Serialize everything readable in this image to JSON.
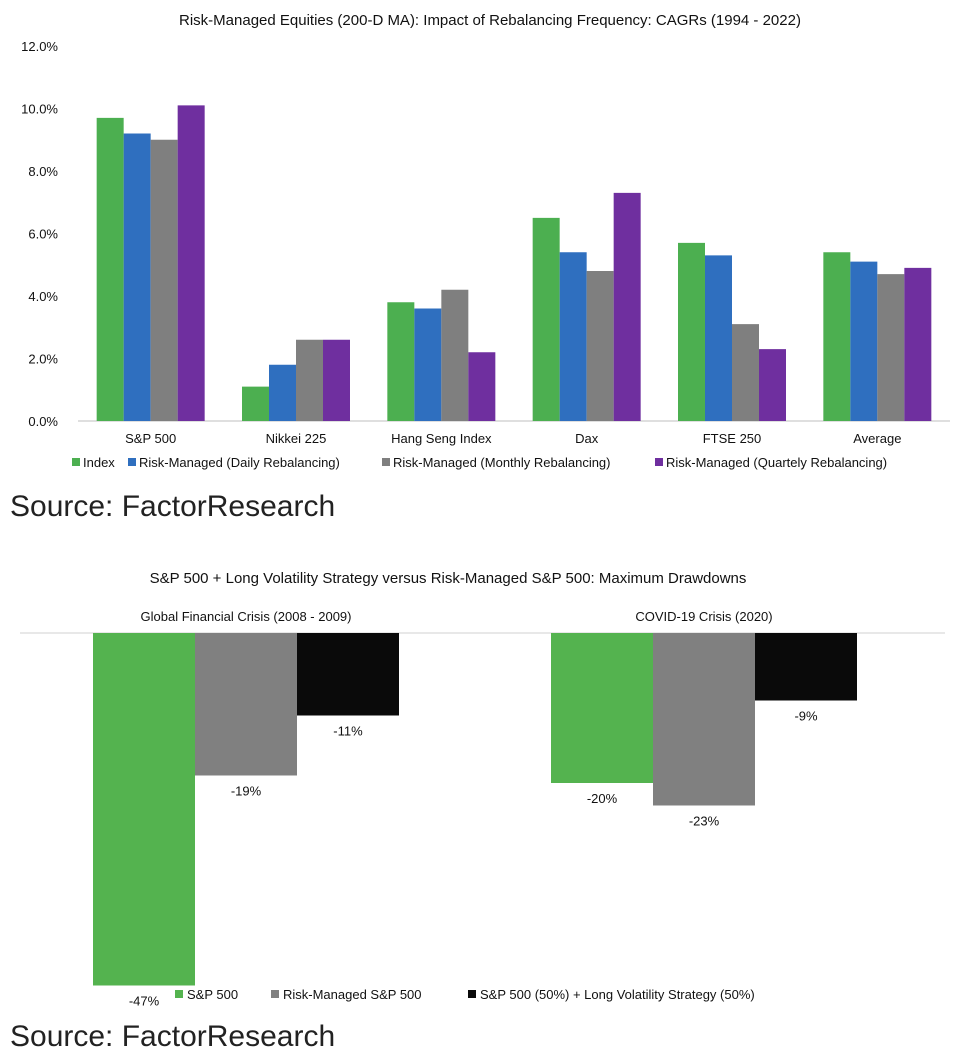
{
  "chart_data": [
    {
      "type": "bar",
      "title": "Risk-Managed Equities (200-D MA): Impact of Rebalancing Frequency: CAGRs (1994 - 2022)",
      "categories": [
        "S&P 500",
        "Nikkei 225",
        "Hang Seng Index",
        "Dax",
        "FTSE 250",
        "Average"
      ],
      "ylim": [
        0,
        12
      ],
      "ytick_labels": [
        "0.0%",
        "2.0%",
        "4.0%",
        "6.0%",
        "8.0%",
        "10.0%",
        "12.0%"
      ],
      "grid": false,
      "legend_position": "bottom",
      "series": [
        {
          "name": "Index",
          "color": "#4caf50",
          "values": [
            9.7,
            1.1,
            3.8,
            6.5,
            5.7,
            5.4
          ]
        },
        {
          "name": "Risk-Managed (Daily Rebalancing)",
          "color": "#2f6fbf",
          "values": [
            9.2,
            1.8,
            3.6,
            5.4,
            5.3,
            5.1
          ]
        },
        {
          "name": "Risk-Managed (Monthly Rebalancing)",
          "color": "#7f7f7f",
          "values": [
            9.0,
            2.6,
            4.2,
            4.8,
            3.1,
            4.7
          ]
        },
        {
          "name": "Risk-Managed (Quartely Rebalancing)",
          "color": "#6f2f9f",
          "values": [
            10.1,
            2.6,
            2.2,
            7.3,
            2.3,
            4.9
          ]
        }
      ]
    },
    {
      "type": "bar",
      "title": "S&P 500 + Long Volatility Strategy versus Risk-Managed S&P 500: Maximum Drawdowns",
      "categories": [
        "Global Financial Crisis (2008 - 2009)",
        "COVID-19 Crisis (2020)"
      ],
      "ylim": [
        -50,
        0
      ],
      "grid": false,
      "legend_position": "bottom",
      "series": [
        {
          "name": "S&P 500",
          "color": "#54b34f",
          "values": [
            -47,
            -20
          ],
          "labels": [
            "-47%",
            "-20%"
          ]
        },
        {
          "name": "Risk-Managed S&P 500",
          "color": "#808080",
          "values": [
            -19,
            -23
          ],
          "labels": [
            "-19%",
            "-23%"
          ]
        },
        {
          "name": "S&P 500 (50%) + Long Volatility Strategy (50%)",
          "color": "#0a0a0a",
          "values": [
            -11,
            -9
          ],
          "labels": [
            "-11%",
            "-9%"
          ]
        }
      ]
    }
  ],
  "sources": [
    "Source: FactorResearch",
    "Source: FactorResearch"
  ]
}
